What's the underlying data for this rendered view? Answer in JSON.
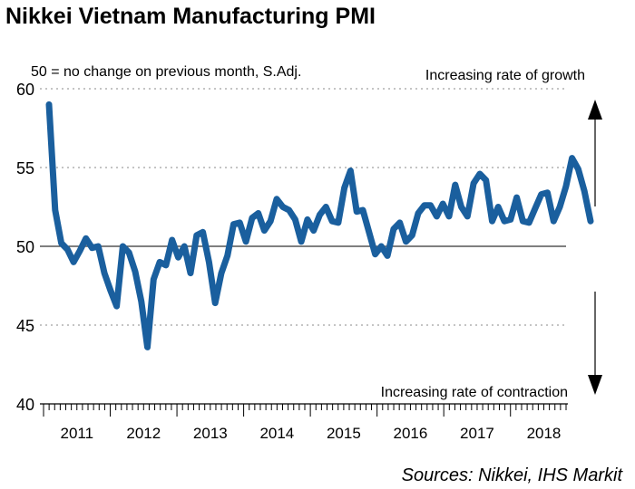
{
  "title": "Nikkei Vietnam Manufacturing PMI",
  "source": "Sources: Nikkei, IHS Markit",
  "chart_data": {
    "type": "line",
    "title": "Nikkei Vietnam Manufacturing PMI",
    "subtitle": "50 = no change on previous month, S.Adj.",
    "annotations": {
      "growth": "Increasing rate of growth",
      "contraction": "Increasing rate of contraction"
    },
    "ylim": [
      40,
      60
    ],
    "yticks": [
      40,
      45,
      50,
      55,
      60
    ],
    "reference_line": 50,
    "grid": "dotted horizontal at 45, 55, 60",
    "x_start": "2011-04",
    "x_end": "2018-05",
    "year_labels": [
      "2011",
      "2012",
      "2013",
      "2014",
      "2015",
      "2016",
      "2017",
      "2018"
    ],
    "line_color": "#1a5f9e",
    "series": [
      {
        "values": [
          59.0,
          52.3,
          50.2,
          49.8,
          49.0,
          49.7,
          50.5,
          49.9,
          50.0,
          48.3,
          47.2,
          46.2,
          50.0,
          49.6,
          48.4,
          46.5,
          43.6,
          47.9,
          49.0,
          48.8,
          50.4,
          49.3,
          50.0,
          48.3,
          50.7,
          50.9,
          49.0,
          46.4,
          48.3,
          49.4,
          51.4,
          51.5,
          50.3,
          51.8,
          52.1,
          51.0,
          51.6,
          53.0,
          52.5,
          52.3,
          51.7,
          50.3,
          51.7,
          51.0,
          52.0,
          52.5,
          51.6,
          51.5,
          53.7,
          54.8,
          52.2,
          52.3,
          50.9,
          49.5,
          50.0,
          49.4,
          51.1,
          51.5,
          50.3,
          50.7,
          52.1,
          52.6,
          52.6,
          51.9,
          52.7,
          51.9,
          53.9,
          52.5,
          51.9,
          54.0,
          54.6,
          54.2,
          51.6,
          52.5,
          51.6,
          51.7,
          53.1,
          51.6,
          51.5,
          52.4,
          53.3,
          53.4,
          51.6,
          52.5,
          53.8,
          55.6,
          54.9,
          53.5,
          51.6
        ]
      }
    ]
  }
}
